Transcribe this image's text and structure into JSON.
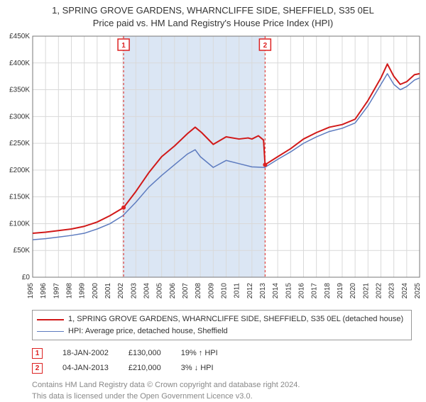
{
  "title_line1": "1, SPRING GROVE GARDENS, WHARNCLIFFE SIDE, SHEFFIELD, S35 0EL",
  "title_line2": "Price paid vs. HM Land Registry's House Price Index (HPI)",
  "chart": {
    "type": "line",
    "background_color": "#ffffff",
    "grid_color": "#d9d9d9",
    "axis_color": "#777777",
    "band_color": "#dbe6f4",
    "tick_font_size": 10,
    "marker_border": "#d22",
    "xlim": [
      1995,
      2025
    ],
    "x_ticks": [
      1995,
      1996,
      1997,
      1998,
      1999,
      2000,
      2001,
      2002,
      2003,
      2004,
      2005,
      2006,
      2007,
      2008,
      2009,
      2010,
      2011,
      2012,
      2013,
      2014,
      2015,
      2016,
      2017,
      2018,
      2019,
      2020,
      2021,
      2022,
      2023,
      2024,
      2025
    ],
    "ylim": [
      0,
      450000
    ],
    "y_ticks": [
      0,
      50000,
      100000,
      150000,
      200000,
      250000,
      300000,
      350000,
      400000,
      450000
    ],
    "y_labels": [
      "£0",
      "£50K",
      "£100K",
      "£150K",
      "£200K",
      "£250K",
      "£300K",
      "£350K",
      "£400K",
      "£450K"
    ],
    "band": {
      "from": 2002.05,
      "to": 2013.02
    },
    "series": [
      {
        "name": "property",
        "label": "1, SPRING GROVE GARDENS, WHARNCLIFFE SIDE, SHEFFIELD, S35 0EL (detached house)",
        "color": "#d11919",
        "width": 2,
        "points": [
          [
            1995,
            82000
          ],
          [
            1996,
            84000
          ],
          [
            1997,
            87000
          ],
          [
            1998,
            90000
          ],
          [
            1999,
            95000
          ],
          [
            2000,
            103000
          ],
          [
            2001,
            115000
          ],
          [
            2002.05,
            130000
          ],
          [
            2003,
            160000
          ],
          [
            2004,
            195000
          ],
          [
            2005,
            225000
          ],
          [
            2006,
            245000
          ],
          [
            2007,
            268000
          ],
          [
            2007.6,
            280000
          ],
          [
            2008.1,
            270000
          ],
          [
            2009,
            248000
          ],
          [
            2010,
            262000
          ],
          [
            2011,
            258000
          ],
          [
            2011.7,
            260000
          ],
          [
            2012,
            258000
          ],
          [
            2012.5,
            264000
          ],
          [
            2012.9,
            256000
          ],
          [
            2013.02,
            210000
          ],
          [
            2014,
            225000
          ],
          [
            2015,
            240000
          ],
          [
            2016,
            258000
          ],
          [
            2017,
            270000
          ],
          [
            2018,
            280000
          ],
          [
            2019,
            285000
          ],
          [
            2020,
            295000
          ],
          [
            2021,
            330000
          ],
          [
            2022,
            372000
          ],
          [
            2022.5,
            398000
          ],
          [
            2023,
            375000
          ],
          [
            2023.5,
            360000
          ],
          [
            2024,
            365000
          ],
          [
            2024.6,
            378000
          ],
          [
            2025,
            380000
          ]
        ]
      },
      {
        "name": "hpi",
        "label": "HPI: Average price, detached house, Sheffield",
        "color": "#5d7bbf",
        "width": 1.5,
        "points": [
          [
            1995,
            70000
          ],
          [
            1996,
            72000
          ],
          [
            1997,
            75000
          ],
          [
            1998,
            78000
          ],
          [
            1999,
            82000
          ],
          [
            2000,
            90000
          ],
          [
            2001,
            100000
          ],
          [
            2002,
            115000
          ],
          [
            2003,
            140000
          ],
          [
            2004,
            168000
          ],
          [
            2005,
            190000
          ],
          [
            2006,
            210000
          ],
          [
            2007,
            230000
          ],
          [
            2007.6,
            238000
          ],
          [
            2008,
            225000
          ],
          [
            2009,
            205000
          ],
          [
            2010,
            218000
          ],
          [
            2011,
            212000
          ],
          [
            2012,
            206000
          ],
          [
            2013,
            205000
          ],
          [
            2014,
            220000
          ],
          [
            2015,
            234000
          ],
          [
            2016,
            250000
          ],
          [
            2017,
            262000
          ],
          [
            2018,
            272000
          ],
          [
            2019,
            278000
          ],
          [
            2020,
            288000
          ],
          [
            2021,
            320000
          ],
          [
            2022,
            360000
          ],
          [
            2022.5,
            380000
          ],
          [
            2023,
            360000
          ],
          [
            2023.5,
            350000
          ],
          [
            2024,
            356000
          ],
          [
            2024.6,
            368000
          ],
          [
            2025,
            372000
          ]
        ]
      }
    ],
    "markers": [
      {
        "num": "1",
        "x": 2002.05,
        "y": 130000
      },
      {
        "num": "2",
        "x": 2013.02,
        "y": 210000
      }
    ]
  },
  "sales": [
    {
      "num": "1",
      "date": "18-JAN-2002",
      "price": "£130,000",
      "diff": "19% ↑ HPI"
    },
    {
      "num": "2",
      "date": "04-JAN-2013",
      "price": "£210,000",
      "diff": "3% ↓ HPI"
    }
  ],
  "footer_line1": "Contains HM Land Registry data © Crown copyright and database right 2024.",
  "footer_line2": "This data is licensed under the Open Government Licence v3.0."
}
